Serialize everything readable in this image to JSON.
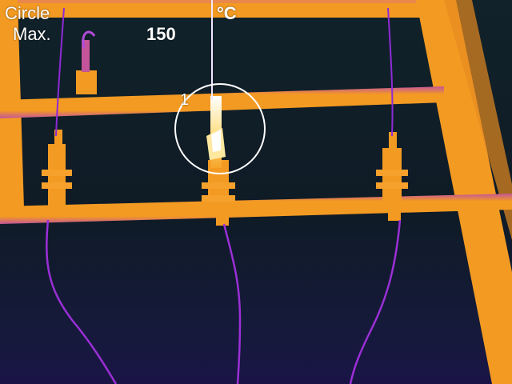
{
  "measurement": {
    "mode": "Circle",
    "unit": "°C",
    "stat_label": "Max.",
    "stat_value": "150"
  },
  "roi": {
    "label": "1",
    "shape": "circle"
  },
  "palette": {
    "background_dark": "#11222a",
    "background_cold": "#1a1446",
    "wire_cold": "#8e2ad6",
    "warm": "#f09a22",
    "hot": "#ffd24a",
    "hottest": "#ffffff"
  }
}
